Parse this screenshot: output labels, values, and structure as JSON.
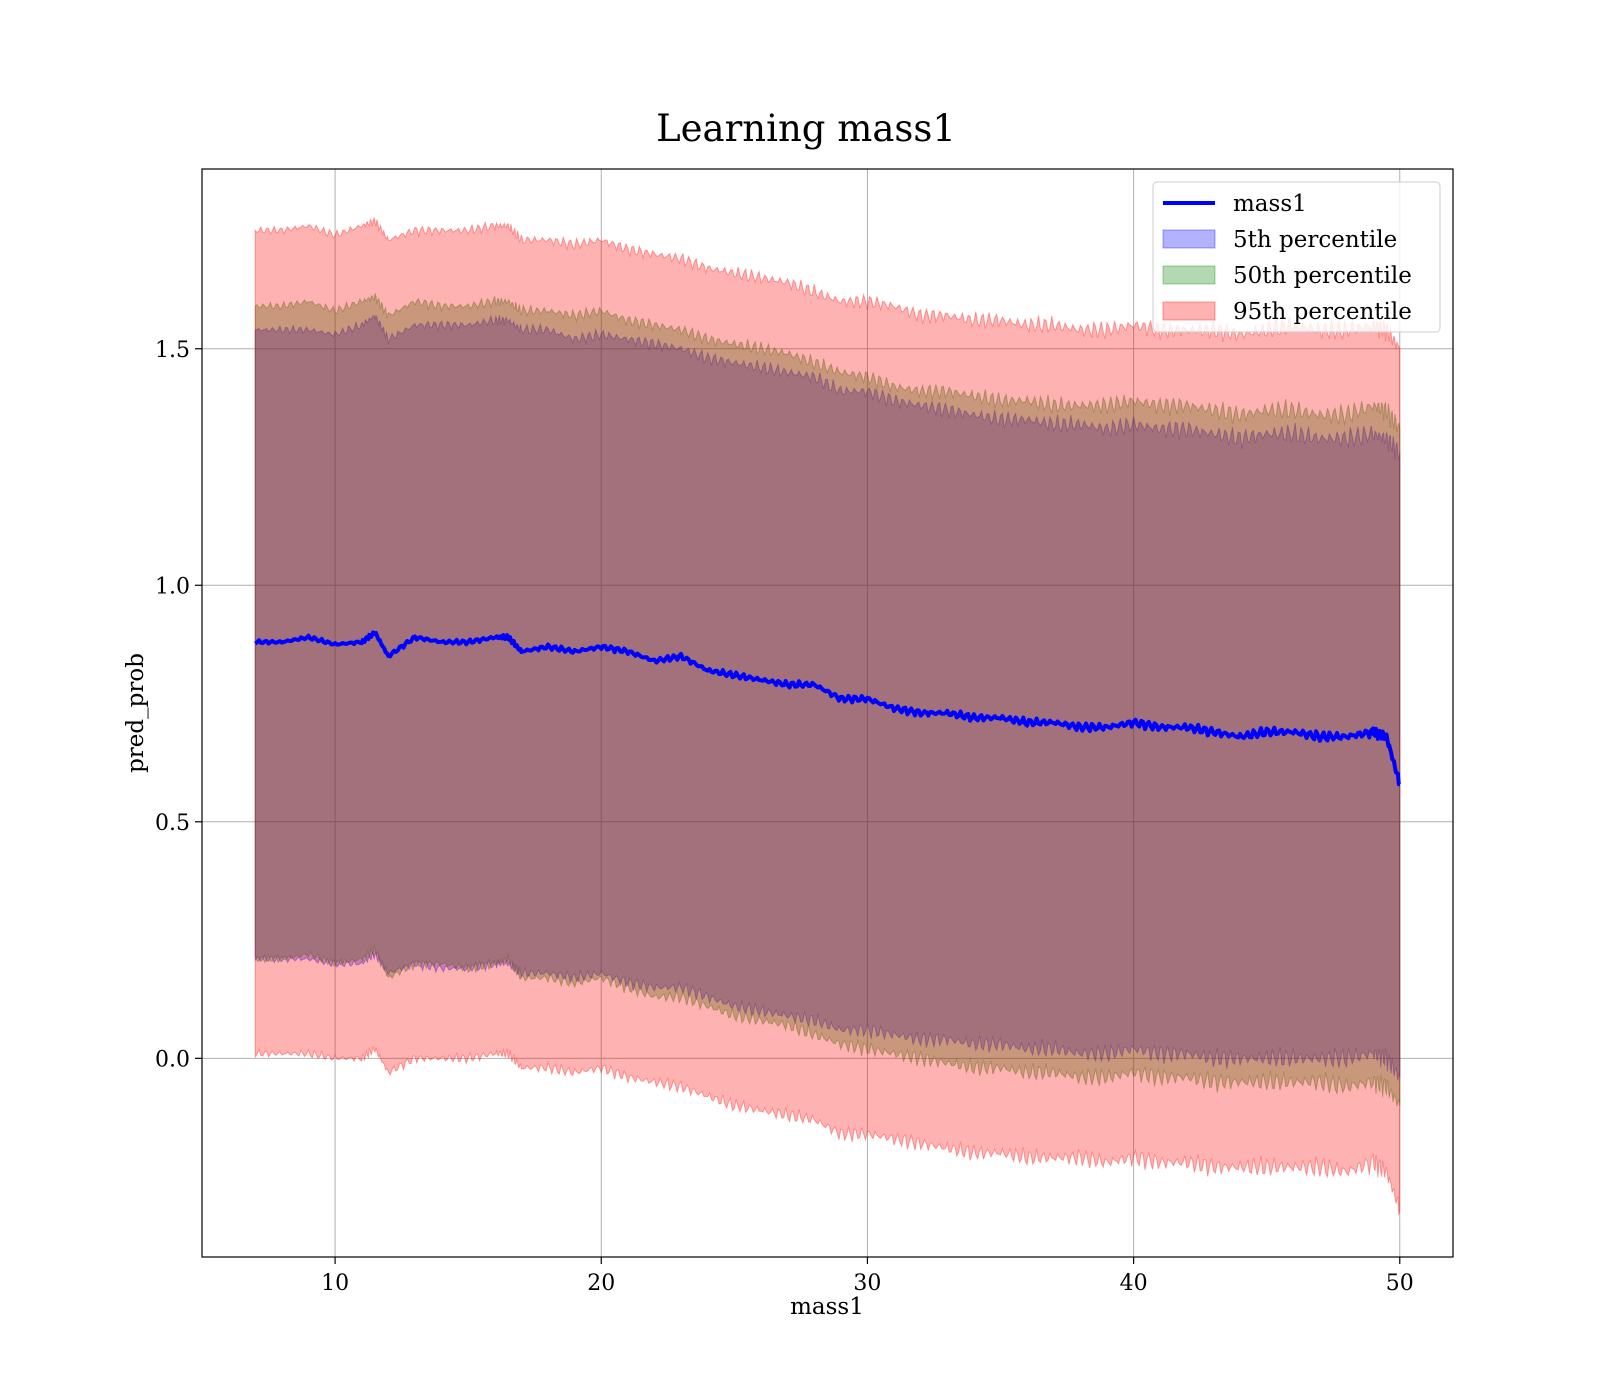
{
  "chart_data": {
    "type": "area",
    "title": "Learning mass1",
    "xlabel": "mass1",
    "ylabel": "pred_prob",
    "xlim": [
      5,
      52
    ],
    "ylim": [
      -0.42,
      1.88
    ],
    "xticks": [
      10,
      20,
      30,
      40,
      50
    ],
    "yticks": [
      0.0,
      0.5,
      1.0,
      1.5
    ],
    "xtick_labels": [
      "10",
      "20",
      "30",
      "40",
      "50"
    ],
    "ytick_labels": [
      "0.0",
      "0.5",
      "1.0",
      "1.5"
    ],
    "grid": true,
    "legend_position": "top-right",
    "x": [
      7,
      8,
      9,
      10,
      11,
      11.5,
      12,
      13,
      14,
      15,
      16,
      16.5,
      17,
      18,
      19,
      20,
      21,
      22,
      23,
      24,
      25,
      26,
      27,
      28,
      29,
      30,
      31,
      32,
      33,
      34,
      35,
      36,
      37,
      38,
      39,
      40,
      41,
      42,
      43,
      44,
      45,
      46,
      47,
      48,
      49,
      49.5,
      50
    ],
    "series": [
      {
        "name": "mass1",
        "kind": "line",
        "color": "#0000ff",
        "values": [
          0.88,
          0.88,
          0.89,
          0.875,
          0.88,
          0.9,
          0.85,
          0.89,
          0.88,
          0.88,
          0.89,
          0.89,
          0.86,
          0.87,
          0.86,
          0.87,
          0.86,
          0.84,
          0.85,
          0.82,
          0.81,
          0.8,
          0.79,
          0.79,
          0.76,
          0.76,
          0.74,
          0.73,
          0.73,
          0.72,
          0.72,
          0.71,
          0.71,
          0.7,
          0.7,
          0.71,
          0.7,
          0.7,
          0.69,
          0.68,
          0.69,
          0.69,
          0.68,
          0.68,
          0.69,
          0.68,
          0.58
        ]
      },
      {
        "name": "5th percentile",
        "kind": "band",
        "color": "#0000ff",
        "lower": [
          0.21,
          0.21,
          0.21,
          0.2,
          0.2,
          0.22,
          0.18,
          0.2,
          0.19,
          0.19,
          0.2,
          0.2,
          0.18,
          0.18,
          0.17,
          0.18,
          0.16,
          0.15,
          0.15,
          0.13,
          0.11,
          0.1,
          0.09,
          0.08,
          0.06,
          0.06,
          0.05,
          0.04,
          0.04,
          0.03,
          0.03,
          0.02,
          0.02,
          0.01,
          0.01,
          0.02,
          0.01,
          0.01,
          0.0,
          0.0,
          0.0,
          0.0,
          0.0,
          0.0,
          0.01,
          0.0,
          -0.04
        ],
        "upper": [
          1.54,
          1.54,
          1.54,
          1.53,
          1.55,
          1.57,
          1.52,
          1.55,
          1.55,
          1.55,
          1.56,
          1.56,
          1.54,
          1.54,
          1.52,
          1.53,
          1.52,
          1.51,
          1.5,
          1.48,
          1.47,
          1.46,
          1.45,
          1.44,
          1.41,
          1.41,
          1.39,
          1.38,
          1.37,
          1.36,
          1.35,
          1.35,
          1.34,
          1.34,
          1.33,
          1.34,
          1.33,
          1.33,
          1.32,
          1.31,
          1.32,
          1.32,
          1.31,
          1.31,
          1.32,
          1.31,
          1.28
        ]
      },
      {
        "name": "50th percentile",
        "kind": "band",
        "color": "#008000",
        "lower": [
          0.21,
          0.21,
          0.22,
          0.2,
          0.21,
          0.23,
          0.17,
          0.2,
          0.2,
          0.19,
          0.2,
          0.21,
          0.17,
          0.17,
          0.16,
          0.17,
          0.15,
          0.13,
          0.13,
          0.11,
          0.09,
          0.08,
          0.07,
          0.05,
          0.03,
          0.02,
          0.01,
          0.0,
          -0.01,
          -0.02,
          -0.02,
          -0.03,
          -0.03,
          -0.04,
          -0.04,
          -0.03,
          -0.04,
          -0.04,
          -0.05,
          -0.05,
          -0.05,
          -0.05,
          -0.05,
          -0.06,
          -0.05,
          -0.06,
          -0.1
        ],
        "upper": [
          1.59,
          1.59,
          1.6,
          1.58,
          1.6,
          1.61,
          1.57,
          1.6,
          1.59,
          1.59,
          1.6,
          1.6,
          1.58,
          1.58,
          1.57,
          1.58,
          1.56,
          1.55,
          1.54,
          1.52,
          1.51,
          1.5,
          1.49,
          1.47,
          1.45,
          1.44,
          1.42,
          1.41,
          1.41,
          1.4,
          1.39,
          1.39,
          1.38,
          1.38,
          1.38,
          1.39,
          1.38,
          1.38,
          1.37,
          1.36,
          1.37,
          1.37,
          1.36,
          1.36,
          1.38,
          1.37,
          1.33
        ]
      },
      {
        "name": "95th percentile",
        "kind": "band",
        "color": "#ff0000",
        "lower": [
          0.01,
          0.01,
          0.01,
          0.0,
          0.0,
          0.02,
          -0.03,
          0.0,
          0.0,
          0.0,
          0.01,
          0.01,
          -0.02,
          -0.02,
          -0.03,
          -0.02,
          -0.04,
          -0.05,
          -0.06,
          -0.08,
          -0.1,
          -0.11,
          -0.12,
          -0.13,
          -0.16,
          -0.16,
          -0.17,
          -0.18,
          -0.19,
          -0.2,
          -0.2,
          -0.21,
          -0.21,
          -0.21,
          -0.22,
          -0.21,
          -0.22,
          -0.22,
          -0.23,
          -0.23,
          -0.23,
          -0.23,
          -0.23,
          -0.24,
          -0.22,
          -0.24,
          -0.32
        ],
        "upper": [
          1.75,
          1.75,
          1.76,
          1.74,
          1.76,
          1.77,
          1.73,
          1.75,
          1.75,
          1.75,
          1.76,
          1.76,
          1.73,
          1.73,
          1.72,
          1.73,
          1.71,
          1.7,
          1.69,
          1.67,
          1.66,
          1.65,
          1.64,
          1.62,
          1.6,
          1.6,
          1.59,
          1.57,
          1.57,
          1.56,
          1.56,
          1.55,
          1.55,
          1.54,
          1.54,
          1.55,
          1.54,
          1.54,
          1.54,
          1.53,
          1.54,
          1.55,
          1.54,
          1.54,
          1.55,
          1.54,
          1.5
        ]
      }
    ]
  }
}
